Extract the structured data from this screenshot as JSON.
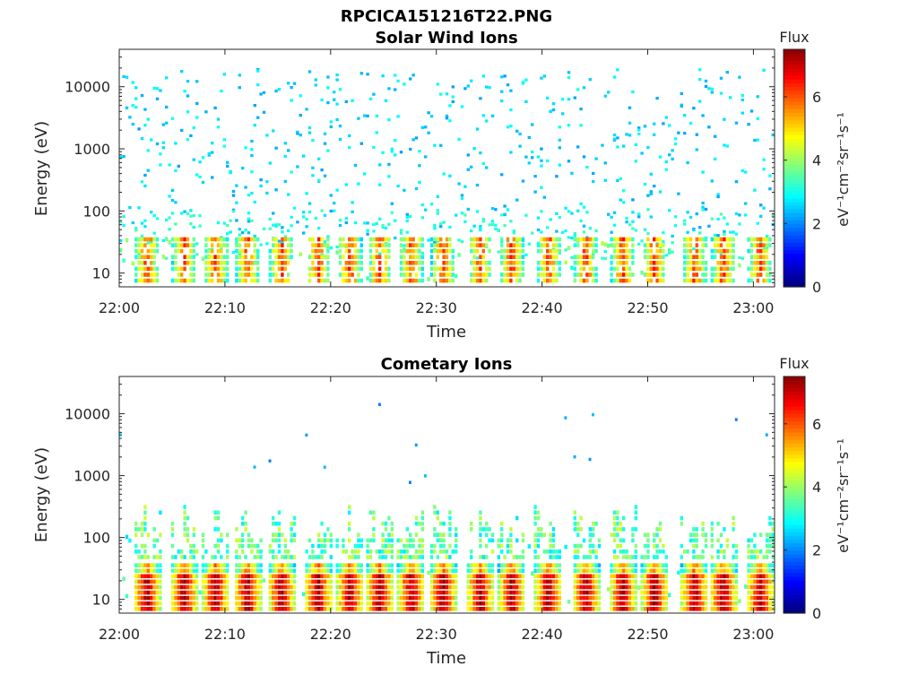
{
  "figure": {
    "filename_title": "RPCICA151216T22.PNG"
  },
  "colormap": {
    "name": "jet",
    "stops": [
      "#00007f",
      "#0000ff",
      "#007fff",
      "#00ffff",
      "#7fff7f",
      "#ffff00",
      "#ff7f00",
      "#ff0000",
      "#7f0000"
    ]
  },
  "chart_data": [
    {
      "type": "heatmap",
      "title": "Solar Wind Ions",
      "xlabel": "Time",
      "ylabel": "Energy (eV)",
      "x_range": [
        "22:00",
        "23:02"
      ],
      "x_ticks": [
        "22:00",
        "22:10",
        "22:20",
        "22:30",
        "22:40",
        "22:50",
        "23:00"
      ],
      "y_scale": "log",
      "y_range": [
        6,
        40000
      ],
      "y_ticks": [
        {
          "value": 10,
          "label": "10"
        },
        {
          "value": 100,
          "label": "100"
        },
        {
          "value": 1000,
          "label": "1000"
        },
        {
          "value": 10000,
          "label": "10000"
        }
      ],
      "colorbar": {
        "title": "Flux",
        "label": "eV⁻¹cm⁻²sr⁻¹s⁻¹",
        "range": [
          0,
          7.5
        ],
        "ticks": [
          "0",
          "2",
          "4",
          "6"
        ]
      },
      "bursts_minutes": [
        2.5,
        6,
        9,
        12,
        15.2,
        18.7,
        21.7,
        24.5,
        27.5,
        30.5,
        34,
        37,
        40.5,
        44,
        47.5,
        50.5,
        54.3,
        57,
        60.5
      ],
      "description": "Sparse blue flux (~2-3) across 30-20000 eV; periodic orange/red bursts (flux ~5-6) at 10-40 eV."
    },
    {
      "type": "heatmap",
      "title": "Cometary Ions",
      "xlabel": "Time",
      "ylabel": "Energy (eV)",
      "x_range": [
        "22:00",
        "23:02"
      ],
      "x_ticks": [
        "22:00",
        "22:10",
        "22:20",
        "22:30",
        "22:40",
        "22:50",
        "23:00"
      ],
      "y_scale": "log",
      "y_range": [
        6,
        40000
      ],
      "y_ticks": [
        {
          "value": 10,
          "label": "10"
        },
        {
          "value": 100,
          "label": "100"
        },
        {
          "value": 1000,
          "label": "1000"
        },
        {
          "value": 10000,
          "label": "10000"
        }
      ],
      "colorbar": {
        "title": "Flux",
        "label": "eV⁻¹cm⁻²sr⁻¹s⁻¹",
        "range": [
          0,
          7.5
        ],
        "ticks": [
          "0",
          "2",
          "4",
          "6"
        ]
      },
      "bursts_minutes": [
        2.5,
        6,
        9,
        12,
        15.2,
        18.7,
        21.7,
        24.5,
        27.5,
        30.5,
        34,
        37,
        40.5,
        44,
        47.5,
        50.5,
        54.3,
        57,
        60.5
      ],
      "description": "Strong red bursts (flux ~6-7) at 8-40 eV with cyan/green plumes up to ~300 eV; few sparse points above 1000 eV."
    }
  ]
}
